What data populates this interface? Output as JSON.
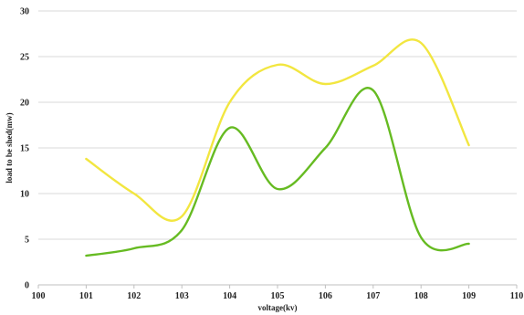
{
  "chart_data": {
    "type": "line",
    "title": "",
    "xlabel": "voltage(kv)",
    "ylabel": "load to be shed(mw)",
    "xlim": [
      100,
      110
    ],
    "ylim": [
      0,
      30
    ],
    "x_ticks": [
      100,
      101,
      102,
      103,
      104,
      105,
      106,
      107,
      108,
      109,
      110
    ],
    "y_ticks": [
      0,
      5,
      10,
      15,
      20,
      25,
      30
    ],
    "grid": "horizontal",
    "legend": "none",
    "series": [
      {
        "color": "#f2e640",
        "x": [
          101,
          102,
          103,
          104,
          105,
          106,
          107,
          108,
          109
        ],
        "y": [
          13.8,
          10.0,
          7.5,
          20.0,
          24.1,
          22.0,
          24.0,
          26.5,
          15.3
        ]
      },
      {
        "color": "#66bb22",
        "x": [
          101,
          102,
          103,
          104,
          105,
          106,
          107,
          108,
          109
        ],
        "y": [
          3.2,
          4.0,
          6.0,
          17.2,
          10.5,
          15.0,
          21.3,
          5.2,
          4.5
        ]
      }
    ]
  }
}
